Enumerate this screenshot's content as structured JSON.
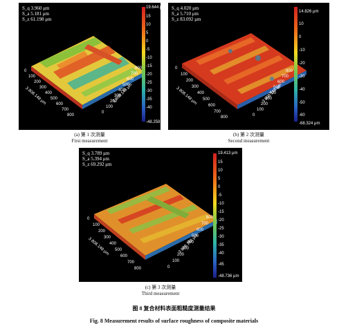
{
  "panels": [
    {
      "stats": [
        "S_q 3.960 μm",
        "S_a 5.181 μm",
        "S_z 61.198 μm"
      ],
      "colorbar": {
        "top": "19.644 μm",
        "bottom": "-48.259 μm",
        "ticks": [
          "15",
          "10",
          "5",
          "0",
          "-5",
          "-10",
          "-15",
          "-20",
          "-25",
          "-30",
          "-35",
          "-40"
        ]
      },
      "axis_x": [
        "0",
        "100",
        "200",
        "300",
        "400",
        "500",
        "600",
        "700",
        "800"
      ],
      "axis_y": [
        "800",
        "700",
        "600",
        "500",
        "400",
        "300",
        "200",
        "100",
        "0"
      ],
      "axis_label": "3 808.148 μm",
      "cap_cn": "(a) 第 1 次测量",
      "cap_en": "First measurement"
    },
    {
      "stats": [
        "S_q 4.020 μm",
        "S_a 5.710 μm",
        "S_z 83.092 μm"
      ],
      "colorbar": {
        "top": "14.826 μm",
        "bottom": "-68.324 μm",
        "ticks": [
          "10",
          "0",
          "-10",
          "-20",
          "-30",
          "-40",
          "-50",
          "-60"
        ]
      },
      "axis_x": [
        "0",
        "100",
        "200",
        "300",
        "400",
        "500",
        "600",
        "700",
        "800"
      ],
      "axis_y": [
        "800",
        "700",
        "600",
        "500",
        "400",
        "300",
        "200",
        "100",
        "0"
      ],
      "axis_label": "3 808.148 μm",
      "cap_cn": "(b) 第 2 次测量",
      "cap_en": "Second measurement"
    },
    {
      "stats": [
        "S_q 3.789 μm",
        "S_a 5.394 μm",
        "S_z 69.292 μm"
      ],
      "colorbar": {
        "top": "19.413 μm",
        "bottom": "-48.736 μm",
        "ticks": [
          "15",
          "10",
          "5",
          "0",
          "-5",
          "-10",
          "-15",
          "-20",
          "-25",
          "-30",
          "-35",
          "-40",
          "-45"
        ]
      },
      "axis_x": [
        "0",
        "100",
        "200",
        "300",
        "400",
        "500",
        "600",
        "700",
        "800"
      ],
      "axis_y": [
        "800",
        "700",
        "600",
        "500",
        "400",
        "300",
        "200",
        "100",
        "0"
      ],
      "axis_label": "3 808.148 μm",
      "cap_cn": "(c) 第 3 次测量",
      "cap_en": "Third measurement"
    }
  ],
  "figure": {
    "title_cn": "图 8  复合材料表面粗糙度测量结果",
    "title_en": "Fig. 8   Measurement results of surface roughness of composite materials"
  }
}
